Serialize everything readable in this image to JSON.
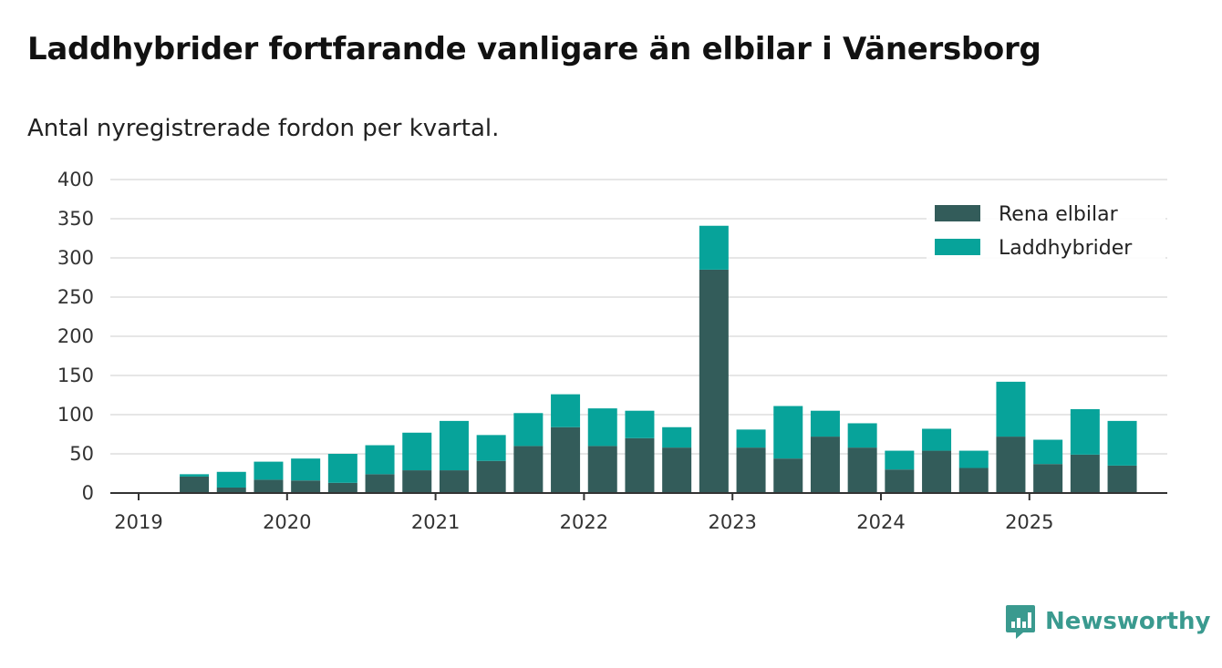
{
  "header": {
    "title": "Laddhybrider fortfarande vanligare än elbilar i Vänersborg",
    "subtitle": "Antal nyregistrerade fordon per kvartal."
  },
  "brand": {
    "name": "Newsworthy",
    "icon": "newsworthy-logo-icon",
    "color": "#3a9a8f"
  },
  "chart_data": {
    "type": "bar",
    "stacked": true,
    "title": "Laddhybrider fortfarande vanligare än elbilar i Vänersborg",
    "subtitle": "Antal nyregistrerade fordon per kvartal.",
    "xlabel": "",
    "ylabel": "",
    "ylim": [
      0,
      400
    ],
    "yticks": [
      "0",
      "50",
      "100",
      "150",
      "200",
      "250",
      "300",
      "350",
      "400"
    ],
    "xticks": [
      "2019",
      "2020",
      "2021",
      "2022",
      "2023",
      "2024",
      "2025"
    ],
    "categories": [
      "2019 Q2",
      "2019 Q3",
      "2019 Q4",
      "2020 Q1",
      "2020 Q2",
      "2020 Q3",
      "2020 Q4",
      "2021 Q1",
      "2021 Q2",
      "2021 Q3",
      "2021 Q4",
      "2022 Q1",
      "2022 Q2",
      "2022 Q3",
      "2022 Q4",
      "2023 Q1",
      "2023 Q2",
      "2023 Q3",
      "2023 Q4",
      "2024 Q1",
      "2024 Q2",
      "2024 Q3",
      "2024 Q4",
      "2025 Q1",
      "2025 Q2",
      "2025 Q3"
    ],
    "series": [
      {
        "name": "Rena elbilar",
        "color": "#335c5a",
        "values": [
          21,
          7,
          17,
          16,
          13,
          24,
          29,
          29,
          41,
          60,
          84,
          60,
          70,
          58,
          285,
          58,
          44,
          72,
          58,
          30,
          54,
          32,
          72,
          37,
          49,
          35
        ]
      },
      {
        "name": "Laddhybrider",
        "color": "#07a39a",
        "values": [
          3,
          20,
          23,
          28,
          37,
          37,
          48,
          63,
          33,
          42,
          42,
          48,
          35,
          26,
          56,
          23,
          67,
          33,
          31,
          24,
          28,
          22,
          70,
          31,
          58,
          57
        ]
      }
    ],
    "grid": true,
    "legend": "top-right"
  }
}
